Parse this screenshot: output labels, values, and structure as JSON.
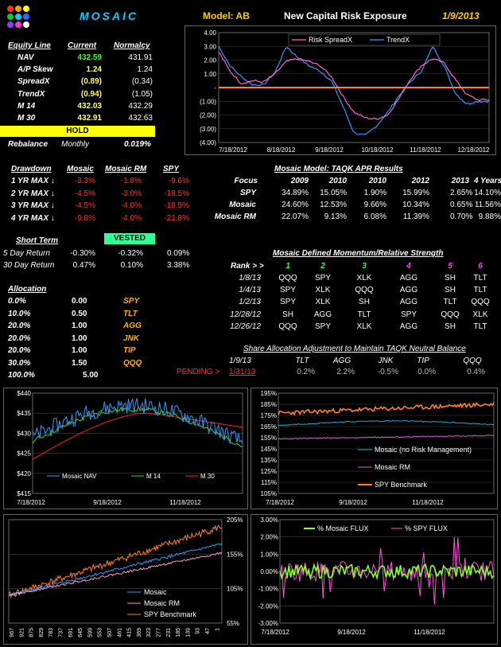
{
  "header": {
    "app_name": "MOSAIC",
    "model": "Model: AB",
    "title": "New Capital Risk Exposure",
    "date": "1/9/2013"
  },
  "equity": {
    "headers": [
      "Equity Line",
      "Current",
      "Normalcy"
    ],
    "rows": [
      [
        "NAV",
        "432.59",
        "431.91"
      ],
      [
        "A/P Skew",
        "1.24",
        "1.24"
      ],
      [
        "SpreadX",
        "(0.89)",
        "(0.34)"
      ],
      [
        "TrendX",
        "(0.94)",
        "(1.05)"
      ],
      [
        "M 14",
        "432.03",
        "432.29"
      ],
      [
        "M 30",
        "432.91",
        "432.63"
      ]
    ],
    "status": "HOLD",
    "rebalance_label": "Rebalance",
    "rebalance_freq": "Monthly",
    "rebalance_pct": "0.019%"
  },
  "risk_chart": {
    "legend": [
      "Risk SpreadX",
      "TrendX"
    ],
    "yticks": [
      "4.00",
      "3.00",
      "2.00",
      "1.00",
      "-",
      "(1.00)",
      "(2.00)",
      "(3.00)",
      "(4.00)"
    ],
    "xticks": [
      "7/18/2012",
      "8/18/2012",
      "9/18/2012",
      "10/18/2012",
      "11/18/2012",
      "12/18/2012"
    ]
  },
  "drawdown": {
    "headers": [
      "Drawdown",
      "Mosaic",
      "Mosaic RM",
      "SPY"
    ],
    "rows": [
      [
        "1 YR MAX ↓",
        "-3.3%",
        "-1.8%",
        "-9.6%"
      ],
      [
        "2 YR MAX ↓",
        "-4.5%",
        "-3.0%",
        "-18.5%"
      ],
      [
        "3 YR MAX ↓",
        "-4.5%",
        "-4.0%",
        "-18.5%"
      ],
      [
        "4 YR MAX ↓",
        "-9.8%",
        "-4.0%",
        "-21.8%"
      ]
    ]
  },
  "apr": {
    "title": "Mosaic Model:  TAQK      APR Results",
    "headers": [
      "Focus",
      "2009",
      "2010",
      "2010",
      "2012",
      "2013",
      "4 Years"
    ],
    "rows": [
      [
        "SPY",
        "34.89%",
        "15.05%",
        "1.90%",
        "15.99%",
        "2.65%",
        "14.10%"
      ],
      [
        "Mosaic",
        "24.60%",
        "12.53%",
        "9.66%",
        "10.34%",
        "0.65%",
        "11.56%"
      ],
      [
        "Mosaic RM",
        "22.07%",
        "9.13%",
        "6.08%",
        "11.39%",
        "0.70%",
        "9.88%"
      ]
    ]
  },
  "short_term": {
    "title": "Short Term",
    "badge": "VESTED",
    "rows": [
      [
        "5 Day Return",
        "-0.30%",
        "-0.32%",
        "0.09%"
      ],
      [
        "30 Day Return",
        "0.47%",
        "0.10%",
        "3.38%"
      ]
    ]
  },
  "momentum": {
    "title": "Mosaic Defined Momentum/Relative Strength",
    "rank_label": "Rank > >",
    "ranks": [
      "1",
      "2",
      "3",
      "4",
      "5",
      "6"
    ],
    "rows": [
      [
        "1/8/13",
        "QQQ",
        "SPY",
        "XLK",
        "AGG",
        "SH",
        "TLT"
      ],
      [
        "1/4/13",
        "SPY",
        "XLK",
        "QQQ",
        "AGG",
        "SH",
        "TLT"
      ],
      [
        "1/2/13",
        "SPY",
        "XLK",
        "SH",
        "AGG",
        "TLT",
        "QQQ"
      ],
      [
        "12/28/12",
        "SH",
        "AGG",
        "TLT",
        "SPY",
        "QQQ",
        "XLK"
      ],
      [
        "12/26/12",
        "QQQ",
        "SPY",
        "XLK",
        "AGG",
        "SH",
        "TLT"
      ]
    ]
  },
  "allocation": {
    "title": "Allocation",
    "rows": [
      [
        "0.0%",
        "0.00",
        "SPY"
      ],
      [
        "10.0%",
        "0.50",
        "TLT"
      ],
      [
        "20.0%",
        "1.00",
        "AGG"
      ],
      [
        "20.0%",
        "1.00",
        "JNK"
      ],
      [
        "20.0%",
        "1.00",
        "TIP"
      ],
      [
        "30.0%",
        "1.50",
        "QQQ"
      ]
    ],
    "total": [
      "100.0%",
      "5.00"
    ]
  },
  "share_adj": {
    "title": "Share Allocation Adjustment to Maintain TAQK Neutral Balance",
    "headers": [
      "1/9/13",
      "TLT",
      "AGG",
      "JNK",
      "TIP",
      "QQQ"
    ],
    "pending_label": "PENDING >",
    "pending_date": "1/31/13",
    "values": [
      "0.2%",
      "2.2%",
      "-0.5%",
      "0.0%",
      "0.4%"
    ]
  },
  "chart_nav": {
    "yticks": [
      "$440",
      "$435",
      "$430",
      "$425",
      "$420",
      "$415"
    ],
    "xticks": [
      "7/18/2012",
      "9/18/2012",
      "11/18/2012"
    ],
    "legend": [
      "Mosaic NAV",
      "M 14",
      "M 30"
    ]
  },
  "chart_pct": {
    "yticks": [
      "195%",
      "185%",
      "175%",
      "165%",
      "155%",
      "145%",
      "135%",
      "125%",
      "115%",
      "105%"
    ],
    "xticks": [
      "7/18/2012",
      "9/18/2012",
      "11/18/2012"
    ],
    "legend": [
      "Mosaic (no Risk Management)",
      "Mosaic RM",
      "SPY Benchmark"
    ]
  },
  "chart_long": {
    "yticks": [
      "205%",
      "155%",
      "105%",
      "55%"
    ],
    "xticks": [
      "967",
      "921",
      "875",
      "829",
      "783",
      "737",
      "691",
      "645",
      "599",
      "553",
      "507",
      "461",
      "415",
      "369",
      "323",
      "277",
      "231",
      "185",
      "139",
      "93",
      "47",
      "1"
    ],
    "legend": [
      "Mosaic",
      "Mosaic RM",
      "SPY Benchmark"
    ]
  },
  "chart_flux": {
    "yticks": [
      "3.00%",
      "2.00%",
      "1.00%",
      "0.00%",
      "-1.00%",
      "-2.00%",
      "-3.00%"
    ],
    "xticks": [
      "7/18/2012",
      "9/18/2012",
      "11/18/2012"
    ],
    "legend": [
      "% Mosaic FLUX",
      "% SPY FLUX"
    ]
  }
}
